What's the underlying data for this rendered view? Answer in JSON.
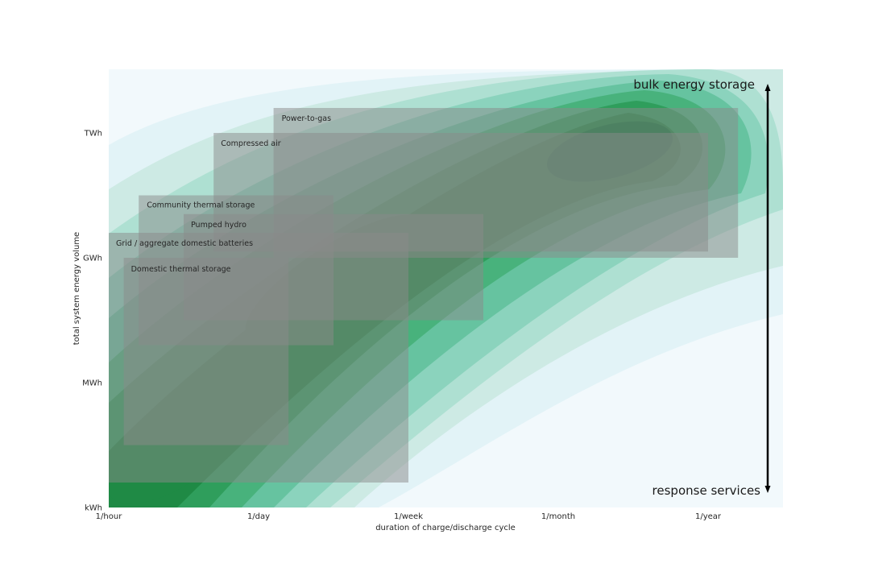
{
  "colors": {
    "background": "#ffffff",
    "contour_palette": [
      "#f2f9fc",
      "#e2f3f7",
      "#cdeae4",
      "#aee0d2",
      "#8bd3bd",
      "#66c3a0",
      "#48b27c",
      "#2f9e5c",
      "#1f8a45",
      "#11793a"
    ],
    "technology_box": "#8a8a8a",
    "arrow": "#000000"
  },
  "chart_data": {
    "type": "heatmap",
    "title": "",
    "xlabel": "duration of charge/discharge cycle",
    "ylabel": "total system energy volume",
    "x_ticks": [
      "1/hour",
      "1/day",
      "1/week",
      "1/month",
      "1/year"
    ],
    "y_ticks": [
      "kWh",
      "MWh",
      "GWh",
      "TWh"
    ],
    "x_range": [
      "1/hour",
      "beyond 1/year"
    ],
    "y_range": [
      "kWh",
      "above TWh"
    ],
    "grid": false,
    "contour_description": "filled density contours, darkest near 1/year at TWh, secondary lobe near 1/day at GWh, another near 1/hour at kWh",
    "technologies": [
      {
        "name": "Power-to-gas",
        "x_from": 1.1,
        "x_to": 4.2,
        "y_from": 2.0,
        "y_to": 3.2
      },
      {
        "name": "Compressed air",
        "x_from": 0.7,
        "x_to": 4.0,
        "y_from": 2.05,
        "y_to": 3.0
      },
      {
        "name": "Community thermal storage",
        "x_from": 0.2,
        "x_to": 1.5,
        "y_from": 1.3,
        "y_to": 2.5
      },
      {
        "name": "Pumped hydro",
        "x_from": 0.5,
        "x_to": 2.5,
        "y_from": 1.5,
        "y_to": 2.35
      },
      {
        "name": "Grid / aggregate domestic batteries",
        "x_from": 0.0,
        "x_to": 2.0,
        "y_from": 0.2,
        "y_to": 2.2
      },
      {
        "name": "Domestic thermal storage",
        "x_from": 0.1,
        "x_to": 1.2,
        "y_from": 0.5,
        "y_to": 2.0
      }
    ],
    "annotations": {
      "top": "bulk energy storage",
      "bottom": "response services"
    }
  }
}
